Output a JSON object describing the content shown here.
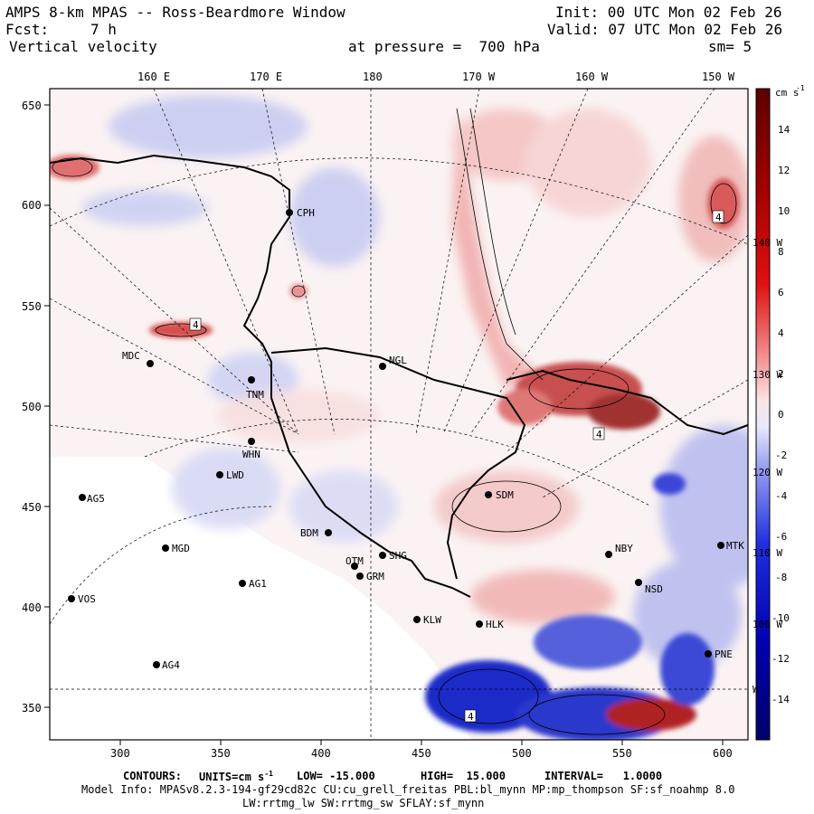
{
  "header": {
    "title": "AMPS 8-km MPAS -- Ross-Beardmore Window",
    "init": "Init: 00 UTC Mon 02 Feb 26",
    "fcst_label": "Fcst:",
    "fcst_value": "7 h",
    "valid": "Valid: 07 UTC Mon 02 Feb 26",
    "field": "Vertical velocity",
    "pressure": "at pressure =  700 hPa",
    "smoothing": "sm= 5"
  },
  "map": {
    "top_longitudes": [
      "160 E",
      "170 E",
      "180",
      "170 W",
      "160 W",
      "150 W"
    ],
    "right_longitudes": [
      "140 W",
      "130 W",
      "120 W",
      "110 W",
      "100 W",
      "W"
    ],
    "x_ticks": [
      "300",
      "350",
      "400",
      "450",
      "500",
      "550",
      "600"
    ],
    "y_ticks": [
      "650",
      "600",
      "550",
      "500",
      "450",
      "400",
      "350"
    ],
    "contour_min_label": "4",
    "stations": [
      {
        "id": "CPH"
      },
      {
        "id": "MDC"
      },
      {
        "id": "NGL"
      },
      {
        "id": "TNM"
      },
      {
        "id": "WHN"
      },
      {
        "id": "LWD"
      },
      {
        "id": "AG5"
      },
      {
        "id": "SDM"
      },
      {
        "id": "BDM"
      },
      {
        "id": "MGD"
      },
      {
        "id": "SHG"
      },
      {
        "id": "OTM"
      },
      {
        "id": "GRM"
      },
      {
        "id": "AG1"
      },
      {
        "id": "NBY"
      },
      {
        "id": "MTK"
      },
      {
        "id": "NSD"
      },
      {
        "id": "VOS"
      },
      {
        "id": "KLW"
      },
      {
        "id": "HLK"
      },
      {
        "id": "AG4"
      },
      {
        "id": "PNE"
      }
    ]
  },
  "colorbar": {
    "units": "cm s",
    "units_exp": "-1",
    "labels": [
      "14",
      "12",
      "10",
      "8",
      "6",
      "4",
      "2",
      "0",
      "-2",
      "-4",
      "-6",
      "-8",
      "-10",
      "-12",
      "-14"
    ]
  },
  "footer": {
    "contours_label": "CONTOURS:",
    "units_label": "UNITS=cm s",
    "units_exp": "-1",
    "low": "LOW= -15.000",
    "high": "HIGH=  15.000",
    "interval": "INTERVAL=   1.0000",
    "model_info": "Model Info: MPASv8.2.3-194-gf29cd82c CU:cu_grell_freitas PBL:bl_mynn MP:mp_thompson SF:sf_noahmp 8.0",
    "model_info2": "LW:rrtmg_lw SW:rrtmg_sw SFLAY:sf_mynn"
  }
}
